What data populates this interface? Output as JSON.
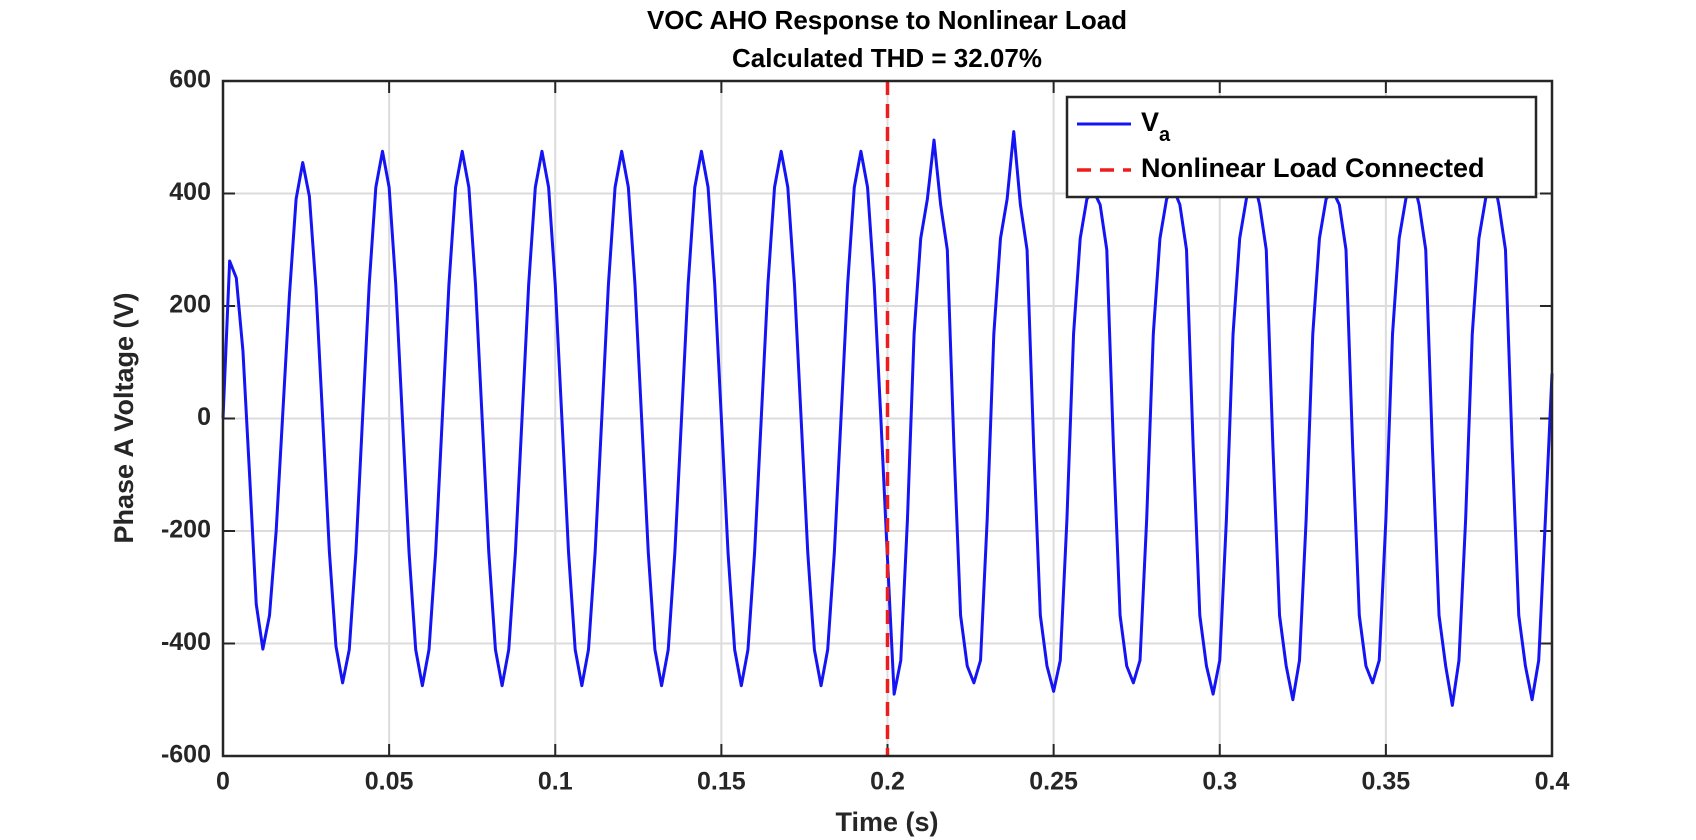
{
  "chart_data": {
    "type": "line",
    "title": "VOC AHO Response to Nonlinear Load",
    "subtitle": "Calculated THD = 32.07%",
    "xlabel": "Time (s)",
    "ylabel": "Phase A Voltage (V)",
    "xlim": [
      0,
      0.4
    ],
    "ylim": [
      -600,
      600
    ],
    "xticks": [
      0,
      0.05,
      0.1,
      0.15,
      0.2,
      0.25,
      0.3,
      0.35,
      0.4
    ],
    "yticks": [
      -600,
      -400,
      -200,
      0,
      200,
      400,
      600
    ],
    "grid": true,
    "legend": "northeast",
    "x": [
      0,
      0.002,
      0.004,
      0.006,
      0.008,
      0.01,
      0.012,
      0.014,
      0.016,
      0.018,
      0.02,
      0.022,
      0.024,
      0.026,
      0.028,
      0.03,
      0.032,
      0.034,
      0.036,
      0.038,
      0.04,
      0.042,
      0.044,
      0.046,
      0.048,
      0.05,
      0.052,
      0.054,
      0.056,
      0.058,
      0.06,
      0.062,
      0.064,
      0.066,
      0.068,
      0.07,
      0.072,
      0.074,
      0.076,
      0.078,
      0.08,
      0.082,
      0.084,
      0.086,
      0.088,
      0.09,
      0.092,
      0.094,
      0.096,
      0.098,
      0.1,
      0.102,
      0.104,
      0.106,
      0.108,
      0.11,
      0.112,
      0.114,
      0.116,
      0.118,
      0.12,
      0.122,
      0.124,
      0.126,
      0.128,
      0.13,
      0.132,
      0.134,
      0.136,
      0.138,
      0.14,
      0.142,
      0.144,
      0.146,
      0.148,
      0.15,
      0.152,
      0.154,
      0.156,
      0.158,
      0.16,
      0.162,
      0.164,
      0.166,
      0.168,
      0.17,
      0.172,
      0.174,
      0.176,
      0.178,
      0.18,
      0.182,
      0.184,
      0.186,
      0.188,
      0.19,
      0.192,
      0.194,
      0.196,
      0.198,
      0.2,
      0.202,
      0.204,
      0.206,
      0.208,
      0.21,
      0.212,
      0.214,
      0.216,
      0.218,
      0.22,
      0.222,
      0.224,
      0.226,
      0.228,
      0.23,
      0.232,
      0.234,
      0.236,
      0.238,
      0.24,
      0.242,
      0.244,
      0.246,
      0.248,
      0.25,
      0.252,
      0.254,
      0.256,
      0.258,
      0.26,
      0.262,
      0.264,
      0.266,
      0.268,
      0.27,
      0.272,
      0.274,
      0.276,
      0.278,
      0.28,
      0.282,
      0.284,
      0.286,
      0.288,
      0.29,
      0.292,
      0.294,
      0.296,
      0.298,
      0.3,
      0.302,
      0.304,
      0.306,
      0.308,
      0.31,
      0.312,
      0.314,
      0.316,
      0.318,
      0.32,
      0.322,
      0.324,
      0.326,
      0.328,
      0.33,
      0.332,
      0.334,
      0.336,
      0.338,
      0.34,
      0.342,
      0.344,
      0.346,
      0.348,
      0.35,
      0.352,
      0.354,
      0.356,
      0.358,
      0.36,
      0.362,
      0.364,
      0.366,
      0.368,
      0.37,
      0.372,
      0.374,
      0.376,
      0.378,
      0.38,
      0.382,
      0.384,
      0.386,
      0.388,
      0.39,
      0.392,
      0.394,
      0.396,
      0.398,
      0.4
    ],
    "series": [
      {
        "name": "V",
        "name_sub": "a",
        "color": "#1414f5",
        "values": [
          0,
          280,
          250,
          120,
          -100,
          -330,
          -410,
          -350,
          -200,
          10,
          220,
          390,
          455,
          395,
          230,
          0,
          -235,
          -405,
          -470,
          -411,
          -238,
          0,
          238,
          411,
          475,
          411,
          238,
          0,
          -238,
          -411,
          -475,
          -411,
          -238,
          0,
          238,
          411,
          475,
          411,
          238,
          0,
          -238,
          -411,
          -475,
          -411,
          -238,
          0,
          238,
          411,
          475,
          411,
          238,
          0,
          -238,
          -411,
          -475,
          -411,
          -238,
          0,
          238,
          411,
          475,
          411,
          238,
          0,
          -238,
          -411,
          -475,
          -411,
          -238,
          0,
          238,
          411,
          475,
          411,
          238,
          0,
          -238,
          -411,
          -475,
          -411,
          -238,
          0,
          238,
          411,
          475,
          411,
          238,
          0,
          -238,
          -411,
          -475,
          -411,
          -238,
          0,
          238,
          411,
          475,
          411,
          238,
          0,
          -250,
          -490,
          -430,
          -180,
          150,
          320,
          390,
          495,
          380,
          300,
          -50,
          -350,
          -440,
          -470,
          -430,
          -180,
          150,
          320,
          390,
          510,
          380,
          300,
          -50,
          -350,
          -440,
          -485,
          -430,
          -180,
          150,
          320,
          390,
          405,
          380,
          300,
          -50,
          -350,
          -440,
          -470,
          -430,
          -180,
          150,
          320,
          390,
          410,
          380,
          300,
          -50,
          -350,
          -440,
          -490,
          -430,
          -180,
          150,
          320,
          390,
          430,
          380,
          300,
          -50,
          -350,
          -440,
          -500,
          -430,
          -180,
          150,
          320,
          390,
          405,
          380,
          300,
          -50,
          -350,
          -440,
          -470,
          -430,
          -180,
          150,
          320,
          390,
          430,
          380,
          300,
          -50,
          -350,
          -440,
          -510,
          -430,
          -180,
          150,
          320,
          390,
          440,
          380,
          300,
          -50,
          -350,
          -440,
          -500,
          -430,
          -180,
          80
        ]
      }
    ],
    "vline": {
      "x": 0.2,
      "label": "Nonlinear Load Connected",
      "color": "#ee1c1c"
    }
  }
}
